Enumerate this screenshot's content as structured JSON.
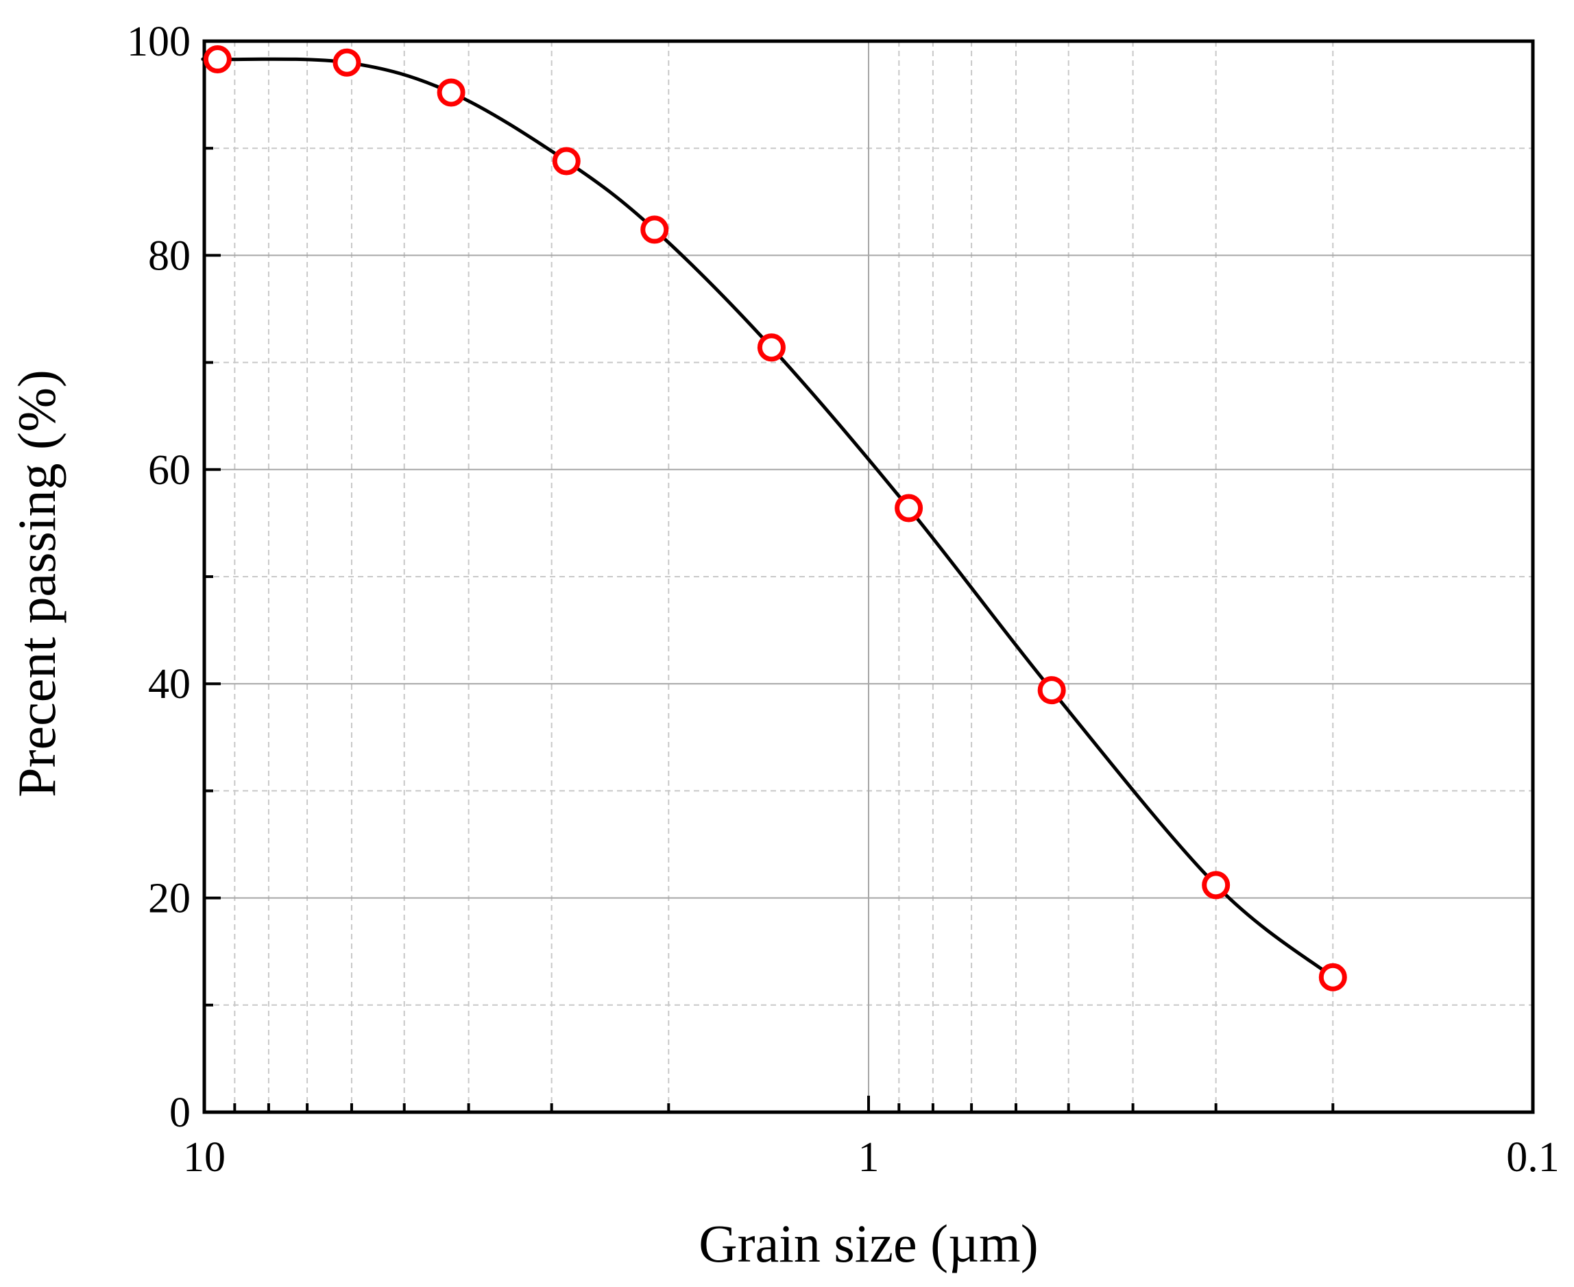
{
  "chart_data": {
    "type": "scatter",
    "title": "",
    "xlabel": "Grain size (µm)",
    "ylabel": "Precent passing (%)",
    "x_scale": "log",
    "x_reversed": true,
    "xlim": [
      10,
      0.1
    ],
    "ylim": [
      0,
      100
    ],
    "x_ticks": [
      {
        "value": 10,
        "label": "10"
      },
      {
        "value": 1,
        "label": "1"
      },
      {
        "value": 0.1,
        "label": "0.1"
      }
    ],
    "y_ticks": [
      {
        "value": 0,
        "label": "0"
      },
      {
        "value": 20,
        "label": "20"
      },
      {
        "value": 40,
        "label": "40"
      },
      {
        "value": 60,
        "label": "60"
      },
      {
        "value": 80,
        "label": "80"
      },
      {
        "value": 100,
        "label": "100"
      }
    ],
    "grid": true,
    "series": [
      {
        "marker": "open-circle",
        "marker_color": "#ff0000",
        "line_color": "#000000",
        "fit_curve": true,
        "x": [
          9.55,
          6.1,
          4.25,
          2.85,
          2.1,
          1.4,
          0.87,
          0.53,
          0.3,
          0.2
        ],
        "y": [
          98.3,
          98.0,
          95.2,
          88.8,
          82.4,
          71.4,
          56.4,
          39.4,
          21.2,
          12.6
        ]
      }
    ]
  },
  "colors": {
    "marker": "#ff0000",
    "curve": "#000000",
    "grid_major": "#a6a6a6",
    "grid_minor": "#c8c8c8",
    "axis": "#000000"
  }
}
